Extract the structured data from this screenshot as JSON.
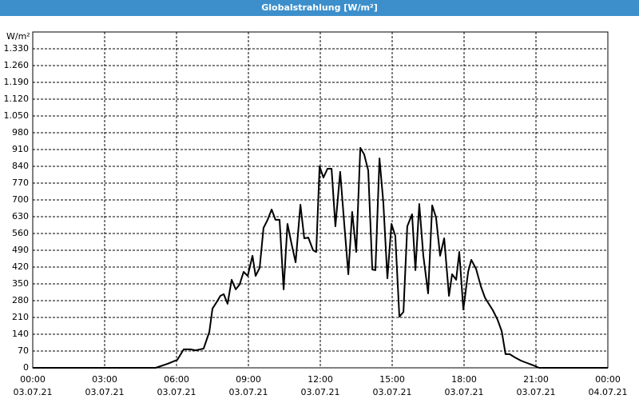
{
  "chart_data": {
    "type": "line",
    "title": "Globalstrahlung [W/m²]",
    "y_label": "W/m²",
    "xlim": [
      0,
      24
    ],
    "xticks": [
      {
        "value": 0,
        "label": "00:00"
      },
      {
        "value": 3,
        "label": "03:00"
      },
      {
        "value": 6,
        "label": "06:00"
      },
      {
        "value": 9,
        "label": "09:00"
      },
      {
        "value": 12,
        "label": "12:00"
      },
      {
        "value": 15,
        "label": "15:00"
      },
      {
        "value": 18,
        "label": "18:00"
      },
      {
        "value": 21,
        "label": "21:00"
      },
      {
        "value": 24,
        "label": "00:00"
      }
    ],
    "xtick_dates": [
      "03.07.21",
      "03.07.21",
      "03.07.21",
      "03.07.21",
      "03.07.21",
      "03.07.21",
      "03.07.21",
      "03.07.21",
      "04.07.21"
    ],
    "ylim": [
      0,
      1400
    ],
    "yticks": [
      0,
      70,
      140,
      210,
      280,
      350,
      420,
      490,
      560,
      630,
      700,
      770,
      840,
      910,
      980,
      {
        "value": 1050,
        "label": "1.050"
      },
      {
        "value": 1120,
        "label": "1.120"
      },
      {
        "value": 1190,
        "label": "1.190"
      },
      {
        "value": 1260,
        "label": "1.260"
      },
      {
        "value": 1330,
        "label": "1.330"
      }
    ],
    "grid": true,
    "series": [
      {
        "color": "#000000",
        "x": [
          0,
          5.13,
          5.63,
          6.03,
          6.3,
          6.57,
          6.8,
          7.13,
          7.37,
          7.5,
          7.67,
          7.83,
          7.97,
          8.13,
          8.3,
          8.47,
          8.63,
          8.8,
          8.97,
          9.17,
          9.3,
          9.47,
          9.63,
          9.8,
          9.97,
          10.13,
          10.3,
          10.47,
          10.63,
          10.8,
          10.97,
          11.17,
          11.33,
          11.5,
          11.7,
          11.83,
          11.97,
          12.13,
          12.3,
          12.47,
          12.63,
          12.83,
          13,
          13.17,
          13.33,
          13.5,
          13.67,
          13.83,
          14,
          14.17,
          14.3,
          14.47,
          14.63,
          14.8,
          14.97,
          15.13,
          15.3,
          15.47,
          15.63,
          15.83,
          15.97,
          16.13,
          16.3,
          16.5,
          16.67,
          16.83,
          17,
          17.17,
          17.37,
          17.5,
          17.67,
          17.8,
          17.97,
          18.17,
          18.3,
          18.5,
          18.7,
          18.87,
          19.03,
          19.2,
          19.4,
          19.57,
          19.73,
          19.9,
          20.13,
          20.37,
          20.63,
          20.9,
          21.13,
          24
        ],
        "values": [
          0,
          0,
          17,
          33,
          77,
          77,
          73,
          80,
          150,
          247,
          273,
          300,
          307,
          267,
          367,
          327,
          347,
          400,
          383,
          467,
          383,
          417,
          583,
          617,
          660,
          617,
          617,
          327,
          600,
          517,
          440,
          680,
          540,
          543,
          490,
          483,
          840,
          793,
          830,
          830,
          590,
          817,
          600,
          390,
          650,
          483,
          917,
          890,
          823,
          410,
          407,
          873,
          690,
          373,
          600,
          550,
          213,
          233,
          590,
          640,
          407,
          683,
          467,
          310,
          677,
          627,
          467,
          540,
          300,
          390,
          367,
          483,
          243,
          400,
          450,
          413,
          340,
          293,
          267,
          240,
          200,
          153,
          57,
          57,
          43,
          30,
          20,
          10,
          0,
          0
        ]
      }
    ]
  }
}
